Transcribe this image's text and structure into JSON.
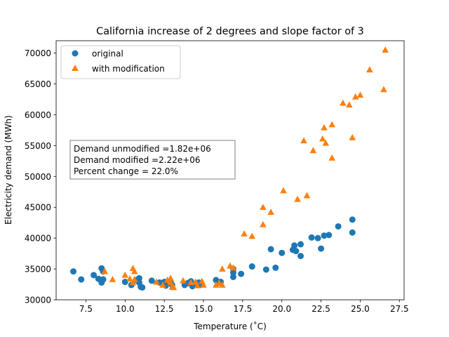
{
  "chart_data": {
    "type": "scatter",
    "title": "California increase of 2 degrees and slope factor of 3",
    "xlabel": "Temperature (˚C)",
    "ylabel": "Electricity demand (MWh)",
    "xlim": [
      5.6,
      27.8
    ],
    "ylim": [
      30000,
      72000
    ],
    "xticks": [
      7.5,
      10.0,
      12.5,
      15.0,
      17.5,
      20.0,
      22.5,
      25.0,
      27.5
    ],
    "xtick_labels": [
      "7.5",
      "10.0",
      "12.5",
      "15.0",
      "17.5",
      "20.0",
      "22.5",
      "25.0",
      "27.5"
    ],
    "yticks": [
      30000,
      35000,
      40000,
      45000,
      50000,
      55000,
      60000,
      65000,
      70000
    ],
    "ytick_labels": [
      "30000",
      "35000",
      "40000",
      "45000",
      "50000",
      "55000",
      "60000",
      "65000",
      "70000"
    ],
    "grid": false,
    "legend_position": "top-left",
    "annotation": {
      "lines": [
        "Demand unmodified =1.82e+06",
        "Demand modified =2.22e+06",
        "Percent change = 22.0%"
      ]
    },
    "series": [
      {
        "name": "original",
        "marker": "circle",
        "color": "#1f77b4",
        "points": [
          [
            6.7,
            34600
          ],
          [
            7.2,
            33300
          ],
          [
            8.0,
            34000
          ],
          [
            8.3,
            33400
          ],
          [
            8.5,
            35100
          ],
          [
            8.6,
            34600
          ],
          [
            8.5,
            32800
          ],
          [
            8.6,
            33300
          ],
          [
            10.0,
            32900
          ],
          [
            10.4,
            32400
          ],
          [
            10.7,
            33200
          ],
          [
            10.9,
            33500
          ],
          [
            10.9,
            32800
          ],
          [
            11.0,
            32100
          ],
          [
            11.1,
            32000
          ],
          [
            11.7,
            33100
          ],
          [
            12.2,
            32800
          ],
          [
            12.5,
            32900
          ],
          [
            12.6,
            32300
          ],
          [
            12.9,
            33000
          ],
          [
            13.0,
            32400
          ],
          [
            13.8,
            32400
          ],
          [
            14.0,
            32700
          ],
          [
            14.2,
            33000
          ],
          [
            14.3,
            32200
          ],
          [
            14.5,
            32500
          ],
          [
            14.7,
            32800
          ],
          [
            14.8,
            32400
          ],
          [
            15.8,
            33200
          ],
          [
            16.1,
            32900
          ],
          [
            16.9,
            35000
          ],
          [
            16.9,
            34400
          ],
          [
            17.4,
            34200
          ],
          [
            16.9,
            33700
          ],
          [
            18.1,
            35400
          ],
          [
            19.0,
            34900
          ],
          [
            19.3,
            38200
          ],
          [
            19.6,
            35200
          ],
          [
            20.0,
            37600
          ],
          [
            20.7,
            38100
          ],
          [
            20.8,
            38800
          ],
          [
            20.9,
            37900
          ],
          [
            21.2,
            37100
          ],
          [
            21.2,
            39000
          ],
          [
            21.9,
            40100
          ],
          [
            22.3,
            40000
          ],
          [
            22.5,
            38300
          ],
          [
            22.7,
            40400
          ],
          [
            23.0,
            40500
          ],
          [
            23.6,
            41900
          ],
          [
            24.5,
            43000
          ],
          [
            24.5,
            40900
          ]
        ]
      },
      {
        "name": "with modification",
        "marker": "triangle",
        "color": "#ff7f0e",
        "points": [
          [
            8.7,
            34600
          ],
          [
            9.2,
            33300
          ],
          [
            10.0,
            34000
          ],
          [
            10.3,
            33400
          ],
          [
            10.5,
            35100
          ],
          [
            10.6,
            34600
          ],
          [
            10.5,
            32800
          ],
          [
            10.6,
            33300
          ],
          [
            12.0,
            32900
          ],
          [
            12.4,
            32400
          ],
          [
            12.7,
            33200
          ],
          [
            12.9,
            33500
          ],
          [
            12.9,
            32800
          ],
          [
            13.0,
            32100
          ],
          [
            13.1,
            32000
          ],
          [
            13.7,
            33100
          ],
          [
            14.2,
            32800
          ],
          [
            14.5,
            32900
          ],
          [
            14.6,
            32300
          ],
          [
            14.9,
            33000
          ],
          [
            15.0,
            32400
          ],
          [
            15.8,
            32400
          ],
          [
            16.0,
            32700
          ],
          [
            16.2,
            35000
          ],
          [
            16.2,
            32400
          ],
          [
            16.7,
            35500
          ],
          [
            16.9,
            35200
          ],
          [
            17.6,
            40700
          ],
          [
            18.1,
            40300
          ],
          [
            18.8,
            42200
          ],
          [
            18.8,
            45000
          ],
          [
            19.3,
            44200
          ],
          [
            20.1,
            47700
          ],
          [
            21.0,
            46300
          ],
          [
            21.4,
            55800
          ],
          [
            21.6,
            46900
          ],
          [
            22.0,
            54200
          ],
          [
            22.6,
            56100
          ],
          [
            22.7,
            57900
          ],
          [
            22.8,
            55400
          ],
          [
            23.2,
            58400
          ],
          [
            23.2,
            53000
          ],
          [
            23.9,
            61900
          ],
          [
            24.3,
            61600
          ],
          [
            24.5,
            56300
          ],
          [
            24.7,
            62900
          ],
          [
            25.0,
            63200
          ],
          [
            25.6,
            67300
          ],
          [
            26.5,
            64100
          ],
          [
            26.6,
            70500
          ]
        ]
      }
    ]
  }
}
